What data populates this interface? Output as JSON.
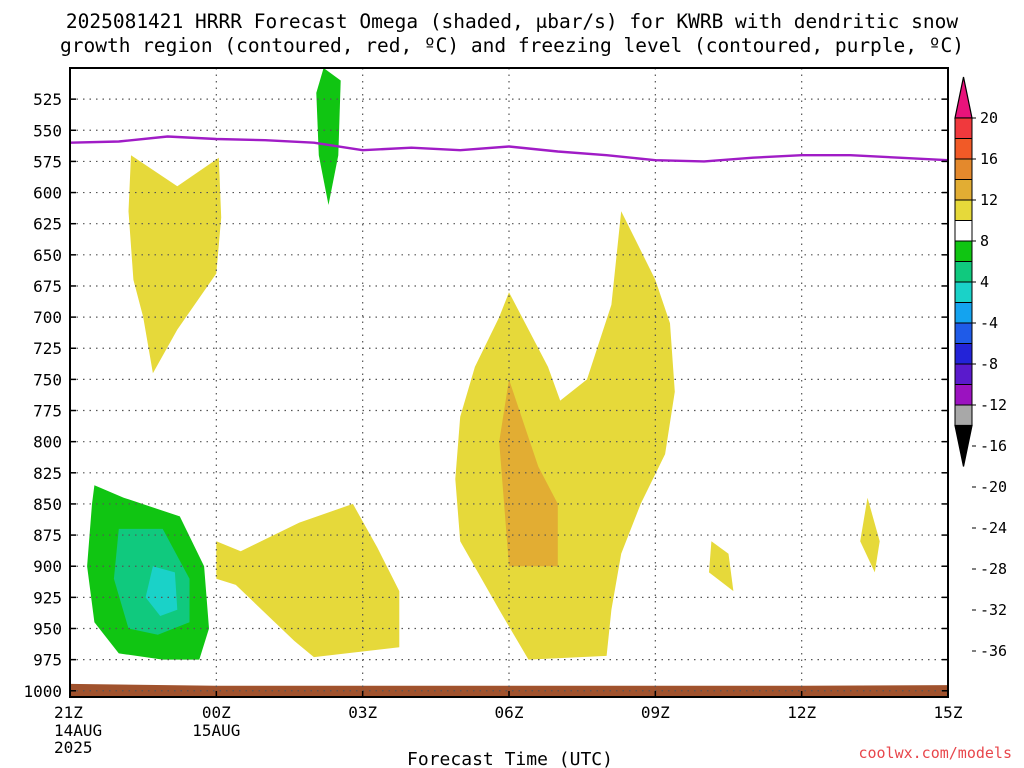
{
  "title": {
    "line1": "2025081421 HRRR Forecast Omega (shaded, μbar/s) for KWRB with dendritic snow",
    "line2": "growth region (contoured, red, ºC) and freezing level (contoured, purple, ºC)"
  },
  "xlabel": "Forecast Time (UTC)",
  "credit": "coolwx.com/models",
  "chart_data": {
    "type": "heatmap",
    "y_axis": {
      "label": "",
      "scale": "pressure (hPa), inverted",
      "range": [
        1005,
        500
      ],
      "ticks": [
        525,
        550,
        575,
        600,
        625,
        650,
        675,
        700,
        725,
        750,
        775,
        800,
        825,
        850,
        875,
        900,
        925,
        950,
        975,
        1000
      ]
    },
    "x_axis": {
      "label": "Forecast Time (UTC)",
      "range_hours": [
        0,
        18
      ],
      "ticks": [
        {
          "hour": 0,
          "label": "21Z",
          "sub": [
            "14AUG",
            "2025"
          ]
        },
        {
          "hour": 3,
          "label": "00Z",
          "sub": [
            "15AUG"
          ]
        },
        {
          "hour": 6,
          "label": "03Z",
          "sub": []
        },
        {
          "hour": 9,
          "label": "06Z",
          "sub": []
        },
        {
          "hour": 12,
          "label": "09Z",
          "sub": []
        },
        {
          "hour": 15,
          "label": "12Z",
          "sub": []
        },
        {
          "hour": 18,
          "label": "15Z",
          "sub": []
        }
      ]
    },
    "grid": true,
    "colorbar": {
      "units": "μbar/s",
      "placement": "right",
      "labels": [
        20,
        16,
        12,
        8,
        4,
        -4,
        -8,
        -12,
        -16,
        -20,
        -24,
        -28,
        -32,
        -36
      ],
      "colors": [
        "#e8137b",
        "#f0393d",
        "#f15a27",
        "#e4892c",
        "#e2ad33",
        "#e6d93a",
        "#ffffff",
        "#10c512",
        "#10c97e",
        "#1ad2c8",
        "#14a3ef",
        "#1f5be8",
        "#2323d8",
        "#5a1acc",
        "#9b12c0",
        "#a8a8a8",
        "#000000"
      ]
    },
    "series": [
      {
        "name": "",
        "field": "omega",
        "kind": "filled_contours",
        "regions": [
          {
            "level": "4 to 8",
            "color": "#e6d93a",
            "polygon": [
              [
                1.25,
                570
              ],
              [
                2.2,
                595
              ],
              [
                3.05,
                572
              ],
              [
                3.1,
                620
              ],
              [
                3.0,
                665
              ],
              [
                2.2,
                710
              ],
              [
                1.7,
                745
              ],
              [
                1.5,
                700
              ],
              [
                1.3,
                670
              ],
              [
                1.2,
                615
              ]
            ]
          },
          {
            "level": "4 to 8",
            "color": "#e6d93a",
            "polygon": [
              [
                3.0,
                880
              ],
              [
                3.5,
                888
              ],
              [
                4.7,
                865
              ],
              [
                5.8,
                850
              ],
              [
                6.3,
                885
              ],
              [
                6.75,
                920
              ],
              [
                6.75,
                965
              ],
              [
                5.0,
                973
              ],
              [
                4.6,
                960
              ],
              [
                3.4,
                915
              ],
              [
                3.0,
                910
              ]
            ]
          },
          {
            "level": "4 to 8",
            "color": "#e6d93a",
            "polygon": [
              [
                9.0,
                680
              ],
              [
                9.8,
                740
              ],
              [
                10.05,
                767
              ],
              [
                10.6,
                750
              ],
              [
                11.1,
                690
              ],
              [
                11.3,
                615
              ],
              [
                12.0,
                670
              ],
              [
                12.3,
                705
              ],
              [
                12.4,
                760
              ],
              [
                12.2,
                810
              ],
              [
                11.7,
                850
              ],
              [
                11.3,
                890
              ],
              [
                11.1,
                935
              ],
              [
                11.0,
                972
              ],
              [
                9.4,
                975
              ],
              [
                8.8,
                935
              ],
              [
                8.0,
                880
              ],
              [
                7.9,
                830
              ],
              [
                8.0,
                780
              ],
              [
                8.3,
                740
              ],
              [
                8.8,
                700
              ]
            ]
          },
          {
            "level": "8 to 12",
            "color": "#e2ad33",
            "polygon": [
              [
                9.0,
                750
              ],
              [
                9.3,
                785
              ],
              [
                9.6,
                820
              ],
              [
                10.0,
                850
              ],
              [
                10.0,
                900
              ],
              [
                9.0,
                900
              ],
              [
                8.9,
                850
              ],
              [
                8.8,
                800
              ]
            ]
          },
          {
            "level": "4 to 8",
            "color": "#e6d93a",
            "polygon": [
              [
                13.15,
                880
              ],
              [
                13.5,
                890
              ],
              [
                13.6,
                920
              ],
              [
                13.1,
                905
              ]
            ]
          },
          {
            "level": "4 to 8",
            "color": "#e6d93a",
            "polygon": [
              [
                16.35,
                845
              ],
              [
                16.6,
                880
              ],
              [
                16.5,
                905
              ],
              [
                16.2,
                880
              ]
            ]
          },
          {
            "level": "-4 to -8",
            "color": "#10c512",
            "polygon": [
              [
                0.5,
                835
              ],
              [
                1.1,
                845
              ],
              [
                2.25,
                860
              ],
              [
                2.75,
                900
              ],
              [
                2.85,
                950
              ],
              [
                2.65,
                975
              ],
              [
                1.9,
                975
              ],
              [
                1.0,
                970
              ],
              [
                0.5,
                945
              ],
              [
                0.35,
                900
              ],
              [
                0.45,
                850
              ]
            ]
          },
          {
            "level": "-8 to -12",
            "color": "#10c97e",
            "polygon": [
              [
                1.0,
                870
              ],
              [
                1.9,
                870
              ],
              [
                2.45,
                910
              ],
              [
                2.45,
                945
              ],
              [
                1.8,
                955
              ],
              [
                1.2,
                950
              ],
              [
                0.9,
                910
              ]
            ]
          },
          {
            "level": "-12 to -16",
            "color": "#1ad2c8",
            "polygon": [
              [
                1.7,
                900
              ],
              [
                2.15,
                905
              ],
              [
                2.2,
                935
              ],
              [
                1.85,
                940
              ],
              [
                1.55,
                925
              ]
            ]
          },
          {
            "level": "-4 to -8",
            "color": "#10c512",
            "polygon": [
              [
                5.2,
                500
              ],
              [
                5.55,
                510
              ],
              [
                5.5,
                570
              ],
              [
                5.3,
                610
              ],
              [
                5.1,
                570
              ],
              [
                5.05,
                520
              ]
            ]
          }
        ]
      },
      {
        "name": "",
        "field": "freezing level",
        "kind": "contour",
        "color": "#a01cc6",
        "points": [
          [
            0,
            560
          ],
          [
            1,
            559
          ],
          [
            2,
            555
          ],
          [
            3,
            557
          ],
          [
            4,
            558
          ],
          [
            5,
            560
          ],
          [
            6,
            566
          ],
          [
            7,
            564
          ],
          [
            8,
            566
          ],
          [
            9,
            563
          ],
          [
            10,
            567
          ],
          [
            11,
            570
          ],
          [
            12,
            574
          ],
          [
            13,
            575
          ],
          [
            14,
            572
          ],
          [
            15,
            570
          ],
          [
            16,
            570
          ],
          [
            17,
            572
          ],
          [
            18,
            574
          ]
        ]
      },
      {
        "name": "",
        "field": "terrain",
        "kind": "surface",
        "color": "#a0522d",
        "top_hPa": 996
      }
    ]
  }
}
